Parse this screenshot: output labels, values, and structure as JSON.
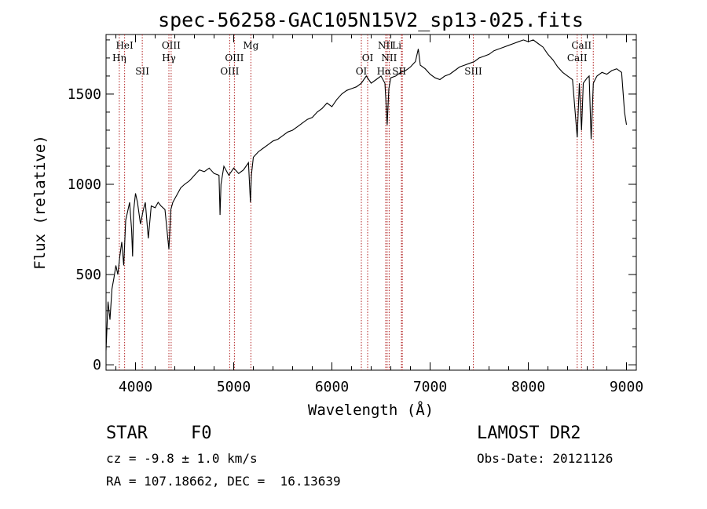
{
  "chart_data": {
    "type": "line",
    "title": "spec-56258-GAC105N15V2_sp13-025.fits",
    "xlabel": "Wavelength (Å)",
    "ylabel": "Flux (relative)",
    "xlim": [
      3700,
      9100
    ],
    "ylim": [
      -30,
      1830
    ],
    "xticks": [
      4000,
      5000,
      6000,
      7000,
      8000,
      9000
    ],
    "yticks": [
      0,
      500,
      1000,
      1500
    ],
    "grid": false,
    "line_color": "#000000",
    "marker_color": "#b22222",
    "series": [
      {
        "x": [
          3700,
          3720,
          3740,
          3760,
          3780,
          3800,
          3820,
          3840,
          3860,
          3880,
          3900,
          3920,
          3940,
          3960,
          3970,
          3980,
          4000,
          4020,
          4050,
          4080,
          4100,
          4130,
          4160,
          4200,
          4230,
          4260,
          4300,
          4340,
          4360,
          4380,
          4400,
          4430,
          4460,
          4500,
          4550,
          4600,
          4650,
          4700,
          4750,
          4800,
          4850,
          4861,
          4870,
          4900,
          4950,
          5000,
          5050,
          5100,
          5150,
          5170,
          5180,
          5200,
          5250,
          5300,
          5350,
          5400,
          5450,
          5500,
          5550,
          5600,
          5650,
          5700,
          5750,
          5800,
          5850,
          5900,
          5950,
          6000,
          6050,
          6100,
          6150,
          6200,
          6250,
          6300,
          6350,
          6400,
          6450,
          6500,
          6540,
          6563,
          6580,
          6600,
          6650,
          6700,
          6750,
          6800,
          6850,
          6880,
          6900,
          6950,
          7000,
          7050,
          7100,
          7150,
          7200,
          7250,
          7300,
          7350,
          7400,
          7450,
          7500,
          7550,
          7600,
          7650,
          7700,
          7750,
          7800,
          7850,
          7900,
          7950,
          8000,
          8050,
          8100,
          8150,
          8200,
          8250,
          8300,
          8350,
          8400,
          8450,
          8498,
          8520,
          8542,
          8560,
          8600,
          8620,
          8640,
          8662,
          8680,
          8700,
          8750,
          8800,
          8850,
          8900,
          8950,
          8980,
          9000
        ],
        "y": [
          80,
          350,
          250,
          420,
          480,
          550,
          500,
          600,
          680,
          550,
          800,
          850,
          900,
          750,
          600,
          850,
          950,
          900,
          780,
          860,
          900,
          700,
          880,
          870,
          900,
          880,
          860,
          640,
          860,
          900,
          920,
          950,
          980,
          1000,
          1020,
          1050,
          1080,
          1070,
          1090,
          1060,
          1050,
          830,
          1000,
          1100,
          1050,
          1090,
          1060,
          1080,
          1120,
          900,
          1050,
          1150,
          1180,
          1200,
          1220,
          1240,
          1250,
          1270,
          1290,
          1300,
          1320,
          1340,
          1360,
          1370,
          1400,
          1420,
          1450,
          1430,
          1470,
          1500,
          1520,
          1530,
          1540,
          1560,
          1600,
          1560,
          1580,
          1600,
          1560,
          1330,
          1530,
          1590,
          1600,
          1620,
          1630,
          1650,
          1680,
          1750,
          1660,
          1640,
          1610,
          1590,
          1580,
          1600,
          1610,
          1630,
          1650,
          1660,
          1670,
          1680,
          1700,
          1710,
          1720,
          1740,
          1750,
          1760,
          1770,
          1780,
          1790,
          1800,
          1790,
          1800,
          1780,
          1760,
          1720,
          1690,
          1650,
          1620,
          1600,
          1580,
          1260,
          1560,
          1300,
          1560,
          1590,
          1600,
          1250,
          1560,
          1580,
          1600,
          1620,
          1610,
          1630,
          1640,
          1620,
          1400,
          1330
        ]
      }
    ],
    "lines": [
      {
        "name": "HeI",
        "x": 3889,
        "row": 1,
        "dx": 0
      },
      {
        "name": "Hη",
        "x": 3835,
        "row": 2,
        "dx": 0
      },
      {
        "name": "SII",
        "x": 4069,
        "row": 3,
        "dx": 0
      },
      {
        "name": "OIII",
        "x": 4363,
        "row": 1,
        "dx": 0
      },
      {
        "name": "Hγ",
        "x": 4340,
        "row": 2,
        "dx": 0
      },
      {
        "name": "OIII",
        "x": 5007,
        "row": 2,
        "dx": 0
      },
      {
        "name": "OIII",
        "x": 4959,
        "row": 3,
        "dx": 0
      },
      {
        "name": "Mg",
        "x": 5175,
        "row": 1,
        "dx": 0
      },
      {
        "name": "OI",
        "x": 6364,
        "row": 2,
        "dx": 0
      },
      {
        "name": "OI",
        "x": 6300,
        "row": 3,
        "dx": 0
      },
      {
        "name": "NII",
        "x": 6548,
        "row": 1,
        "dx": 0
      },
      {
        "name": "Li",
        "x": 6708,
        "row": 1,
        "dx": -6
      },
      {
        "name": "NII",
        "x": 6583,
        "row": 2,
        "dx": 0
      },
      {
        "name": "Hα",
        "x": 6563,
        "row": 3,
        "dx": -4
      },
      {
        "name": "SII",
        "x": 6717,
        "row": 3,
        "dx": -4
      },
      {
        "name": "SIII",
        "x": 7440,
        "row": 3,
        "dx": 0
      },
      {
        "name": "CaII",
        "x": 8542,
        "row": 1,
        "dx": 0
      },
      {
        "name": "CaII",
        "x": 8498,
        "row": 2,
        "dx": 0
      },
      {
        "name": "CaII",
        "x": 8662,
        "row": 0,
        "dx": 0
      }
    ]
  },
  "info": {
    "object_class": "STAR",
    "subclass": "F0",
    "survey": "LAMOST DR2",
    "cz": "cz = -9.8 ± 1.0 km/s",
    "obs_date": "Obs-Date: 20121126",
    "coords": "RA = 107.18662, DEC =  16.13639"
  }
}
